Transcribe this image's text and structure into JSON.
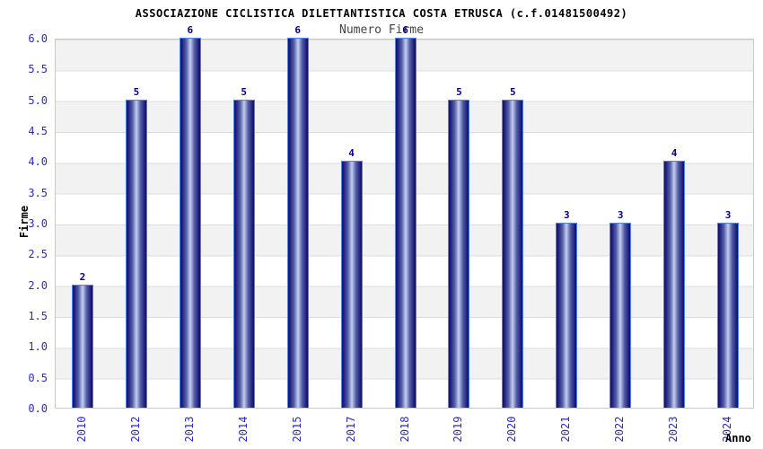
{
  "chart_data": {
    "type": "bar",
    "title": "ASSOCIAZIONE CICLISTICA DILETTANTISTICA COSTA ETRUSCA (c.f.01481500492)",
    "subtitle": "Numero Firme",
    "xlabel": "Anno",
    "ylabel": "Firme",
    "categories": [
      "2010",
      "2012",
      "2013",
      "2014",
      "2015",
      "2017",
      "2018",
      "2019",
      "2020",
      "2021",
      "2022",
      "2023",
      "2024"
    ],
    "values": [
      2,
      5,
      6,
      5,
      6,
      4,
      6,
      5,
      5,
      3,
      3,
      4,
      3
    ],
    "ylim": [
      0,
      6
    ],
    "ytick_step": 0.5,
    "yticks": [
      "6.0",
      "5.5",
      "5.0",
      "4.5",
      "4.0",
      "3.5",
      "3.0",
      "2.5",
      "2.0",
      "1.5",
      "1.0",
      "0.5",
      "0.0"
    ],
    "grid": "alternating-horizontal-bands",
    "legend": "none",
    "bar_value_labels_shown": true
  },
  "colors": {
    "bar_dark": "#10105e",
    "bar_highlight": "#c4ccee",
    "bar_border": "#4d85e6",
    "axis_tick_label": "#2929cc",
    "bar_value_label": "#00008b",
    "band_gray": "#f2f2f2",
    "band_white": "#ffffff",
    "gridline": "#dcdcdc",
    "plot_border": "#c9c9c9",
    "title": "#000000",
    "subtitle": "#444444",
    "background": "#ffffff"
  }
}
